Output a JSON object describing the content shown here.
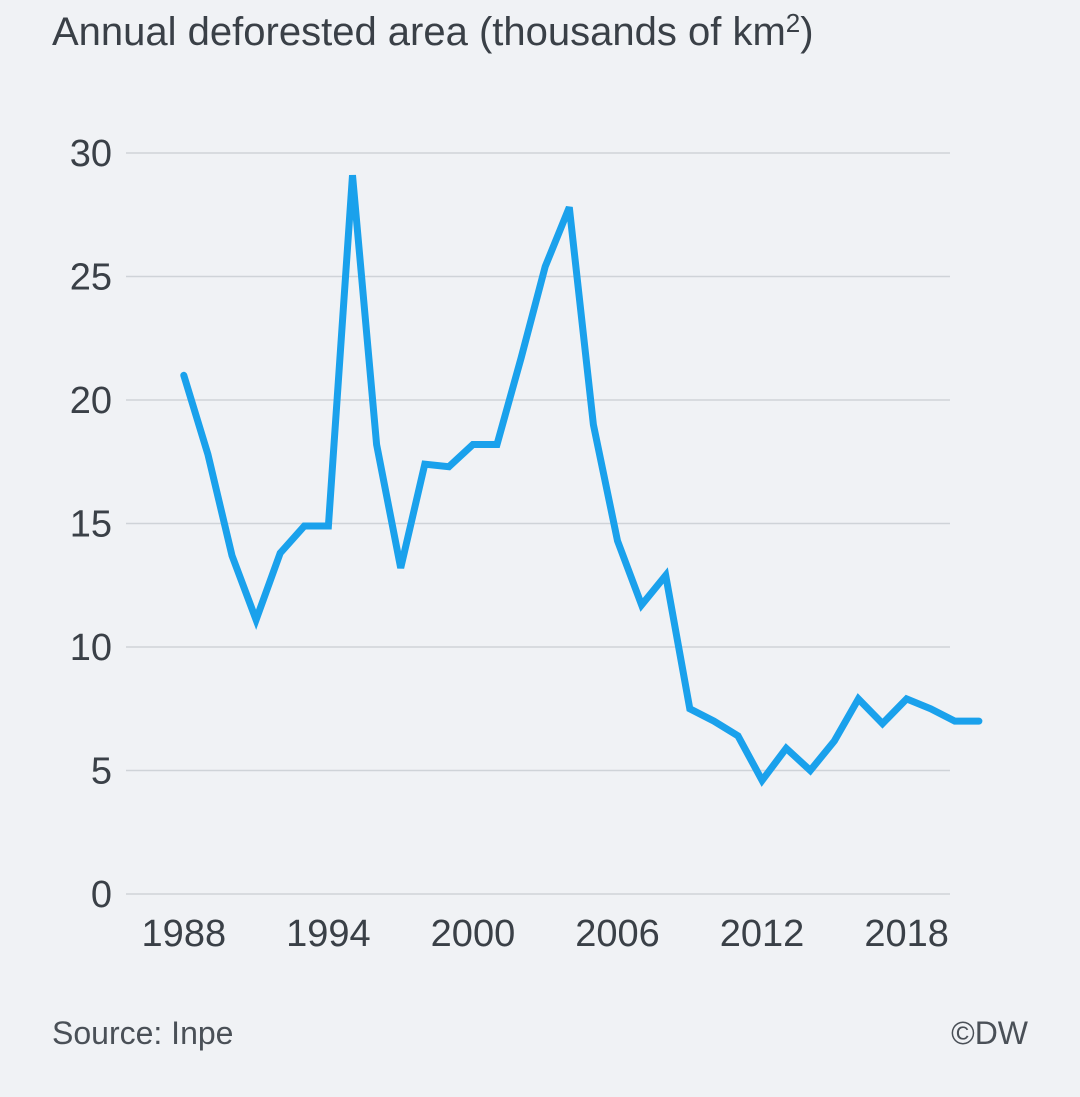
{
  "header": {
    "title_main": "Annual deforested area (thousands of km",
    "title_sup": "2",
    "title_end": ")"
  },
  "footer": {
    "source": "Source: Inpe",
    "credit": "©DW"
  },
  "colors": {
    "line": "#1aa1ec",
    "grid": "#cfd3d8",
    "background": "#f0f2f5"
  },
  "chart_data": {
    "type": "line",
    "title": "Annual deforested area (thousands of km²)",
    "xlabel": "",
    "ylabel": "",
    "xlim": [
      1985.6,
      2019.8
    ],
    "ylim": [
      0,
      30
    ],
    "yticks": [
      0,
      5,
      10,
      15,
      20,
      25,
      30
    ],
    "xticks": [
      1988,
      1994,
      2000,
      2006,
      2012,
      2018
    ],
    "grid": true,
    "legend": "none",
    "series": [
      {
        "x": [
          1988,
          1989,
          1990,
          1991,
          1992,
          1993,
          1994,
          1995,
          1996,
          1997,
          1998,
          1999,
          2000,
          2001,
          2002,
          2003,
          2004,
          2005,
          2006,
          2007,
          2008,
          2009,
          2010,
          2011,
          2012,
          2013,
          2014,
          2015,
          2016,
          2017,
          2018,
          2019,
          2020,
          2021
        ],
        "y": [
          21.0,
          17.8,
          13.7,
          11.1,
          13.8,
          14.9,
          14.9,
          29.1,
          18.2,
          13.2,
          17.4,
          17.3,
          18.2,
          18.2,
          21.7,
          25.4,
          27.8,
          19.0,
          14.3,
          11.7,
          12.9,
          7.5,
          7.0,
          6.4,
          4.6,
          5.9,
          5.0,
          6.2,
          7.9,
          6.9,
          7.9,
          7.5,
          7.0,
          7.0
        ]
      }
    ]
  }
}
